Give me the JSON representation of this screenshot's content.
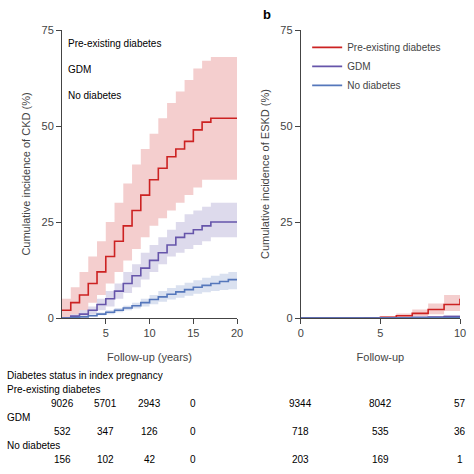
{
  "chart_data": [
    {
      "type": "step",
      "x_label": "Follow-up (years)",
      "y_label": "Cumulative incidence of CKD (%)",
      "x": [
        0,
        1,
        2,
        3,
        4,
        5,
        6,
        7,
        8,
        9,
        10,
        11,
        12,
        13,
        14,
        15,
        16,
        17,
        18,
        19,
        20
      ],
      "series": [
        {
          "name": "Pre-existing diabetes",
          "color": "#CC2222",
          "values": [
            2,
            4,
            6,
            9,
            12,
            16,
            20,
            24,
            28,
            32,
            36,
            39,
            42,
            44,
            46,
            49,
            51,
            52,
            52,
            52,
            52
          ],
          "lower": [
            0,
            1,
            2,
            4,
            6,
            9,
            12,
            15,
            18,
            21,
            24,
            26,
            28,
            30,
            32,
            34,
            36,
            36,
            36,
            36,
            36
          ],
          "upper": [
            5,
            8,
            12,
            16,
            20,
            25,
            30,
            35,
            40,
            44,
            48,
            52,
            56,
            59,
            62,
            65,
            67,
            68,
            68,
            68,
            68
          ]
        },
        {
          "name": "GDM",
          "color": "#6655AA",
          "values": [
            0,
            0.5,
            1,
            2,
            3.5,
            5,
            7,
            9,
            11,
            13,
            15,
            17,
            19,
            21,
            22,
            23,
            24,
            25,
            25,
            25,
            25
          ],
          "lower": [
            0,
            0.2,
            0.5,
            1,
            2,
            3,
            5,
            6.5,
            8,
            10,
            12,
            14,
            16,
            17,
            18,
            19,
            20,
            21,
            21,
            21,
            21
          ],
          "upper": [
            0,
            1,
            2,
            3,
            5,
            7,
            9,
            12,
            14,
            17,
            19,
            21,
            23,
            25,
            27,
            28,
            29,
            30,
            30,
            30,
            30
          ]
        },
        {
          "name": "No diabetes",
          "color": "#5577BB",
          "values": [
            0,
            0.1,
            0.3,
            0.6,
            1,
            1.5,
            2,
            2.6,
            3.2,
            4,
            4.8,
            5.5,
            6.2,
            6.8,
            7.4,
            8,
            8.5,
            9,
            9.5,
            10,
            10
          ],
          "lower": [
            0,
            0.05,
            0.2,
            0.4,
            0.7,
            1,
            1.5,
            2,
            2.5,
            3,
            3.6,
            4.2,
            4.8,
            5.3,
            5.8,
            6.3,
            6.7,
            7,
            7.3,
            7.5,
            7.5
          ],
          "upper": [
            0,
            0.2,
            0.5,
            0.9,
            1.4,
            2,
            2.6,
            3.2,
            4,
            5,
            6,
            7,
            7.8,
            8.5,
            9.2,
            9.8,
            10.5,
            11,
            11.5,
            12,
            12
          ]
        }
      ],
      "xlim": [
        0,
        20
      ],
      "xticks": [
        5,
        10,
        15,
        20
      ],
      "ylim": [
        0,
        75
      ],
      "yticks": [
        0,
        25,
        50,
        75
      ],
      "grid": false,
      "annotations": [
        "Pre-existing diabetes",
        "GDM",
        "No diabetes"
      ],
      "at_risk": {
        "title": "Diabetes status in index pregnancy",
        "x": [
          0,
          5,
          10,
          15
        ],
        "rows": [
          {
            "name": "Pre-existing diabetes",
            "values": [
              9026,
              5701,
              2943,
              0
            ]
          },
          {
            "name": "GDM",
            "values": [
              532,
              347,
              126,
              0
            ]
          },
          {
            "name": "No diabetes",
            "values": [
              156,
              102,
              42,
              0
            ]
          }
        ]
      }
    },
    {
      "type": "step",
      "title": "b",
      "x_label": "Follow-up",
      "y_label": "Cumulative incidence of ESKD (%)",
      "x": [
        0,
        1,
        2,
        3,
        4,
        5,
        6,
        7,
        8,
        9,
        10
      ],
      "series": [
        {
          "name": "Pre-existing diabetes",
          "color": "#CC2222",
          "values": [
            0,
            0,
            0,
            0,
            0.05,
            0.2,
            0.6,
            1.2,
            2.2,
            3.5,
            5.0
          ],
          "lower": [
            0,
            0,
            0,
            0,
            0,
            0.05,
            0.2,
            0.5,
            1.0,
            1.8,
            2.8
          ],
          "upper": [
            0,
            0,
            0,
            0,
            0.15,
            0.5,
            1.2,
            2.2,
            3.8,
            6.0,
            8.5
          ]
        },
        {
          "name": "GDM",
          "color": "#6655AA",
          "values": [
            0,
            0,
            0,
            0,
            0,
            0.03,
            0.07,
            0.15,
            0.25,
            0.35,
            0.45
          ],
          "lower": [
            0,
            0,
            0,
            0,
            0,
            0.01,
            0.03,
            0.07,
            0.12,
            0.18,
            0.22
          ],
          "upper": [
            0,
            0,
            0,
            0,
            0,
            0.08,
            0.18,
            0.35,
            0.55,
            0.75,
            0.95
          ]
        },
        {
          "name": "No diabetes",
          "color": "#5577BB",
          "values": [
            0,
            0,
            0,
            0,
            0,
            0.01,
            0.02,
            0.03,
            0.05,
            0.07,
            0.09
          ],
          "lower": [
            0,
            0,
            0,
            0,
            0,
            0.003,
            0.008,
            0.015,
            0.025,
            0.035,
            0.045
          ],
          "upper": [
            0,
            0,
            0,
            0,
            0,
            0.018,
            0.038,
            0.065,
            0.095,
            0.13,
            0.16
          ]
        }
      ],
      "xlim": [
        0,
        10
      ],
      "xticks": [
        0,
        5,
        10
      ],
      "ylim": [
        0,
        75
      ],
      "yticks": [
        0,
        25,
        50,
        75
      ],
      "grid": false,
      "legend": "upper left",
      "at_risk": {
        "x": [
          0,
          5,
          10
        ],
        "rows": [
          {
            "values": [
              9344,
              8042,
              57
            ]
          },
          {
            "values": [
              718,
              535,
              36
            ]
          },
          {
            "values": [
              203,
              169,
              1
            ]
          }
        ]
      }
    }
  ]
}
